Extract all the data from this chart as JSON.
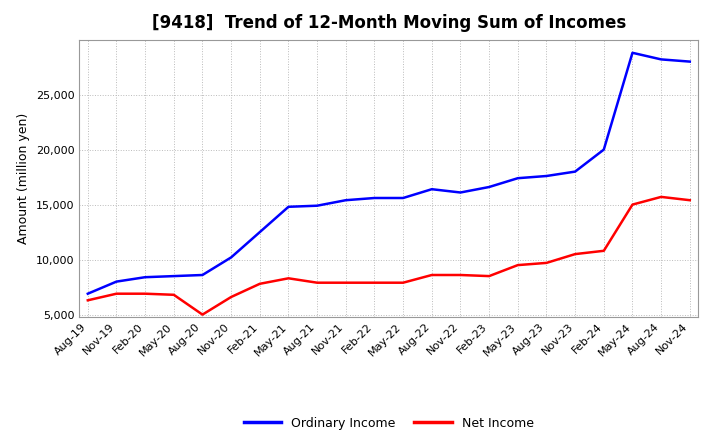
{
  "title": "[9418]  Trend of 12-Month Moving Sum of Incomes",
  "ylabel": "Amount (million yen)",
  "background_color": "#ffffff",
  "grid_color": "#bbbbbb",
  "x_labels": [
    "Aug-19",
    "Nov-19",
    "Feb-20",
    "May-20",
    "Aug-20",
    "Nov-20",
    "Feb-21",
    "May-21",
    "Aug-21",
    "Nov-21",
    "Feb-22",
    "May-22",
    "Aug-22",
    "Nov-22",
    "Feb-23",
    "May-23",
    "Aug-23",
    "Nov-23",
    "Feb-24",
    "May-24",
    "Aug-24",
    "Nov-24"
  ],
  "ordinary_income": [
    6900,
    8000,
    8400,
    8500,
    8600,
    10200,
    12500,
    14800,
    14900,
    15400,
    15600,
    15600,
    16400,
    16100,
    16600,
    17400,
    17600,
    18000,
    20000,
    28800,
    28200,
    28000
  ],
  "net_income": [
    6300,
    6900,
    6900,
    6800,
    5000,
    6600,
    7800,
    8300,
    7900,
    7900,
    7900,
    7900,
    8600,
    8600,
    8500,
    9500,
    9700,
    10500,
    10800,
    15000,
    15700,
    15400
  ],
  "ordinary_color": "#0000ff",
  "net_color": "#ff0000",
  "ylim_min": 4800,
  "ylim_max": 30000,
  "yticks": [
    5000,
    10000,
    15000,
    20000,
    25000
  ],
  "line_width": 1.8,
  "title_fontsize": 12,
  "tick_fontsize": 8,
  "ylabel_fontsize": 9,
  "legend_fontsize": 9
}
